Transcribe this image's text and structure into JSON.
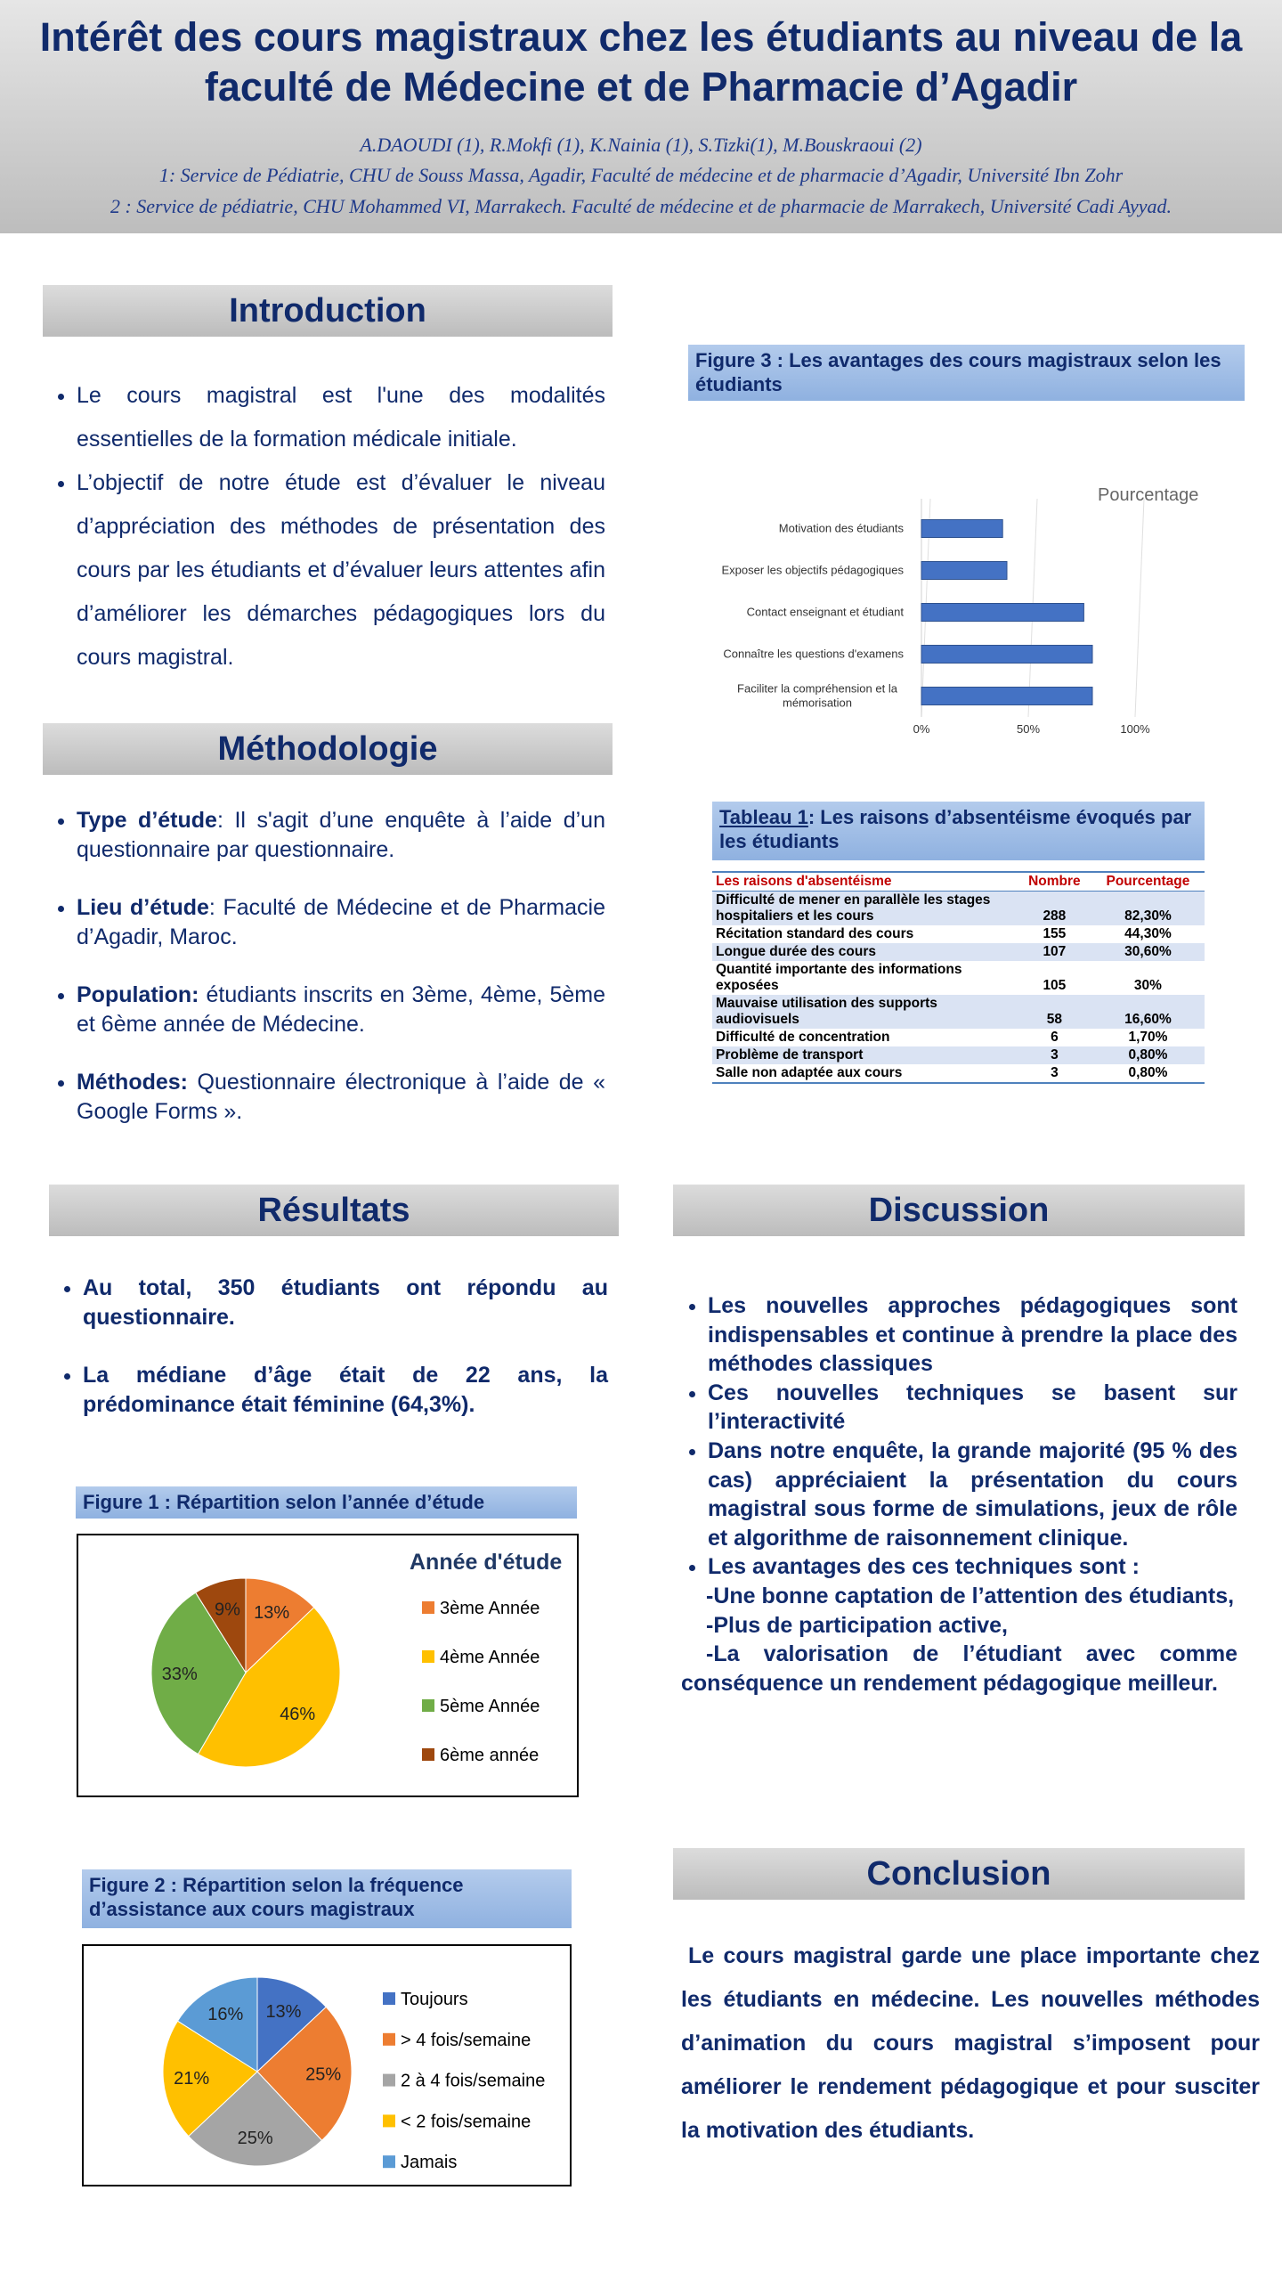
{
  "header": {
    "title": "Intérêt des cours magistraux chez les étudiants au niveau de la faculté de Médecine et de Pharmacie d’Agadir",
    "authors": "A.DAOUDI (1), R.Mokfi (1), K.Nainia (1), S.Tizki(1), M.Bouskraoui (2)",
    "affiliations": [
      "1: Service de Pédiatrie, CHU de Souss Massa, Agadir, Faculté de médecine et de pharmacie d’Agadir, Université Ibn Zohr",
      "2 : Service de pédiatrie, CHU Mohammed VI, Marrakech. Faculté de médecine et de pharmacie de Marrakech, Université Cadi Ayyad."
    ]
  },
  "introduction": {
    "heading": "Introduction",
    "bullets": [
      "Le cours magistral est l'une des modalités essentielles de la formation médicale initiale.",
      "L’objectif de notre étude est d’évaluer le niveau d’appréciation des méthodes de présentation des cours par les étudiants et d’évaluer leurs attentes afin d’améliorer les démarches pédagogiques lors du cours magistral."
    ]
  },
  "methodology": {
    "heading": "Méthodologie",
    "items": [
      {
        "label": "Type d’étude",
        "text": ": Il s'agit d’une enquête à l’aide d’un questionnaire par questionnaire."
      },
      {
        "label": "Lieu d’étude",
        "text": ": Faculté de Médecine et de Pharmacie d’Agadir, Maroc."
      },
      {
        "label": "Population:",
        "text": " étudiants inscrits en 3ème, 4ème, 5ème et 6ème année de Médecine."
      },
      {
        "label": "Méthodes:",
        "text": " Questionnaire électronique à l’aide de « Google Forms »."
      }
    ]
  },
  "results": {
    "heading": "Résultats",
    "bullets": [
      "Au total, 350 étudiants ont répondu au questionnaire.",
      "La médiane d’âge était de 22 ans, la prédominance était féminine (64,3%)."
    ]
  },
  "table": {
    "caption_link": "Tableau 1",
    "caption": ": Les raisons d’absentéisme évoqués par les étudiants",
    "columns": [
      "Les raisons d'absentéisme",
      "Nombre",
      "Pourcentage"
    ],
    "rows": [
      [
        "Difficulté de mener en parallèle les stages hospitaliers et les cours",
        "288",
        "82,30%"
      ],
      [
        "Récitation standard des cours",
        "155",
        "44,30%"
      ],
      [
        "Longue durée des cours",
        "107",
        "30,60%"
      ],
      [
        "Quantité importante des informations exposées",
        "105",
        "30%"
      ],
      [
        "Mauvaise utilisation des supports audiovisuels",
        "58",
        "16,60%"
      ],
      [
        "Difficulté de concentration",
        "6",
        "1,70%"
      ],
      [
        "Problème de transport",
        "3",
        "0,80%"
      ],
      [
        "Salle non adaptée aux cours",
        "3",
        "0,80%"
      ]
    ]
  },
  "discussion": {
    "heading": "Discussion",
    "bullets": [
      "Les nouvelles approches pédagogiques sont indispensables et continue à prendre la place des méthodes classiques",
      "Ces nouvelles techniques se basent sur l’interactivité",
      "Dans notre enquête, la grande majorité (95 % des cas) appréciaient la présentation du cours magistral sous forme de simulations, jeux de rôle et algorithme de raisonnement clinique.",
      "Les avantages des ces techniques sont :"
    ],
    "sub": [
      "-Une bonne captation de l’attention des étudiants,",
      "-Plus de participation active,",
      "-La valorisation de l’étudiant avec comme conséquence un rendement pédagogique meilleur."
    ]
  },
  "conclusion": {
    "heading": "Conclusion",
    "text": "Le cours magistral garde une place importante chez les étudiants en médecine. Les nouvelles méthodes d’animation du cours magistral s’imposent pour améliorer le rendement pédagogique et pour susciter la motivation des étudiants."
  },
  "chart_data": [
    {
      "type": "bar",
      "orientation": "horizontal",
      "caption": "Figure 3 : Les avantages des cours magistraux selon les étudiants",
      "categories": [
        "Motivation des étudiants",
        "Exposer les objectifs pédagogiques",
        "Contact enseignant et étudiant",
        "Connaître les questions d'examens",
        "Faciliter la compréhension et la mémorisation"
      ],
      "series": [
        {
          "name": "Pourcentage",
          "color": "#4472c4",
          "values": [
            38,
            40,
            76,
            80,
            80
          ]
        }
      ],
      "xlim": [
        0,
        100
      ],
      "xticks": [
        {
          "value": 0,
          "label": "0%"
        },
        {
          "value": 50,
          "label": "50%"
        },
        {
          "value": 100,
          "label": "100%"
        }
      ],
      "grid": true
    },
    {
      "type": "pie",
      "caption": "Figure 1 : Répartition selon l’année d’étude",
      "title": "Année d'étude",
      "categories": [
        "3ème  Année",
        "4ème Année",
        "5ème Année",
        "6ème année"
      ],
      "values": [
        13,
        46,
        33,
        9
      ],
      "value_labels": [
        "13%",
        "46%",
        "33%",
        "9%"
      ],
      "colors": [
        "#ed7d31",
        "#ffc000",
        "#70ad47",
        "#9e480e"
      ]
    },
    {
      "type": "pie",
      "caption": "Figure 2 : Répartition selon la fréquence d’assistance aux cours magistraux",
      "categories": [
        "Toujours",
        "> 4 fois/semaine",
        "2 à 4 fois/semaine",
        "< 2 fois/semaine",
        "Jamais"
      ],
      "values": [
        13,
        25,
        25,
        21,
        16
      ],
      "value_labels": [
        "13%",
        "25%",
        "25%",
        "21%",
        "16%"
      ],
      "colors": [
        "#4472c4",
        "#ed7d31",
        "#a5a5a5",
        "#ffc000",
        "#5b9bd5"
      ]
    }
  ]
}
